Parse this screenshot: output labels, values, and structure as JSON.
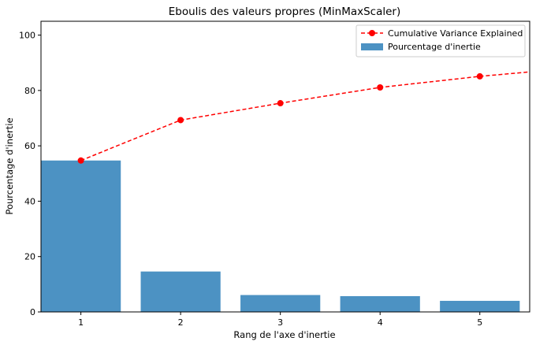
{
  "chart_data": {
    "type": "bar",
    "title": "Eboulis des valeurs propres (MinMaxScaler)",
    "xlabel": "Rang de l'axe d'inertie",
    "ylabel": "Pourcentage d'inertie",
    "categories": [
      1,
      2,
      3,
      4,
      5
    ],
    "xlim": [
      0.6,
      5.5
    ],
    "ylim": [
      0,
      105
    ],
    "yticks": [
      0,
      20,
      40,
      60,
      80,
      100
    ],
    "series": [
      {
        "name": "Pourcentage d'inertie",
        "kind": "bar",
        "color": "#1f77b4",
        "values": [
          54.7,
          14.6,
          6.1,
          5.7,
          4.0
        ]
      },
      {
        "name": "Cumulative Variance Explained",
        "kind": "line",
        "color": "#ff0000",
        "linestyle": "dashed",
        "marker": "circle",
        "x": [
          1,
          2,
          3,
          4,
          5,
          6
        ],
        "values": [
          54.7,
          69.3,
          75.4,
          81.1,
          85.1,
          88.3
        ]
      }
    ],
    "legend_position": "top-right",
    "grid": false
  }
}
